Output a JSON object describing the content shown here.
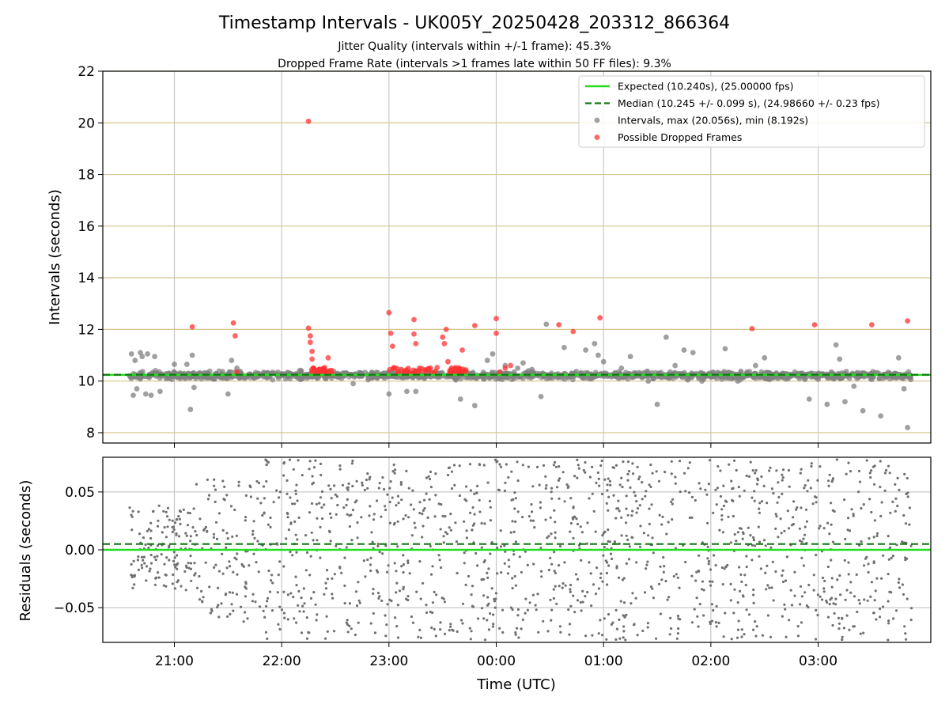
{
  "chart_data": [
    {
      "type": "scatter",
      "title": "Timestamp Intervals - UK005Y_20250428_203312_866364",
      "subtitle_lines": [
        "Jitter Quality (intervals within +/-1 frame): 45.3%",
        "Dropped Frame Rate (intervals >1 frames late within 50 FF files): 9.3%"
      ],
      "xlabel": "",
      "ylabel": "Intervals (seconds)",
      "ylim": [
        7.6,
        22
      ],
      "yticks": [
        8,
        10,
        12,
        14,
        16,
        18,
        20,
        22
      ],
      "xlim_hours": [
        20.333,
        28.05
      ],
      "grid": true,
      "legend_position": "top-right",
      "legend": [
        {
          "label": "Expected (10.240s), (25.00000 fps)",
          "kind": "line",
          "color": "#22dd22"
        },
        {
          "label": "Median (10.245 +/- 0.099 s), (24.98660 +/- 0.23 fps)",
          "kind": "dashed",
          "color": "#117711"
        },
        {
          "label": "Intervals, max (20.056s), min (8.192s)",
          "kind": "point",
          "color": "#808080"
        },
        {
          "label": "Possible Dropped Frames",
          "kind": "point",
          "color": "#ff3333"
        }
      ],
      "reference_lines": {
        "expected": 10.24,
        "median": 10.245
      },
      "series": [
        {
          "name": "Intervals, max (20.056s), min (8.192s)",
          "color": "#808080",
          "points": [
            [
              "20:35",
              10.2
            ],
            [
              "20:36",
              11.05
            ],
            [
              "20:37",
              9.45
            ],
            [
              "20:38",
              10.8
            ],
            [
              "20:39",
              9.7
            ],
            [
              "20:41",
              11.1
            ],
            [
              "20:42",
              10.95
            ],
            [
              "20:44",
              9.5
            ],
            [
              "20:45",
              11.05
            ],
            [
              "20:47",
              9.45
            ],
            [
              "20:49",
              10.95
            ],
            [
              "20:52",
              9.6
            ],
            [
              "20:53",
              10.2
            ],
            [
              "20:55",
              10.25
            ],
            [
              "21:00",
              10.65
            ],
            [
              "21:07",
              10.65
            ],
            [
              "21:09",
              8.9
            ],
            [
              "21:10",
              11.0
            ],
            [
              "21:11",
              9.75
            ],
            [
              "21:30",
              9.5
            ],
            [
              "21:32",
              10.8
            ],
            [
              "21:35",
              10.5
            ],
            [
              "22:10",
              10.4
            ],
            [
              "22:20",
              10.1
            ],
            [
              "22:35",
              10.3
            ],
            [
              "22:40",
              9.9
            ],
            [
              "22:50",
              10.2
            ],
            [
              "23:00",
              9.5
            ],
            [
              "23:05",
              10.15
            ],
            [
              "23:10",
              9.6
            ],
            [
              "23:15",
              9.6
            ],
            [
              "23:25",
              10.2
            ],
            [
              "23:40",
              9.3
            ],
            [
              "23:45",
              10.3
            ],
            [
              "23:48",
              9.05
            ],
            [
              "23:55",
              10.8
            ],
            [
              "23:58",
              11.05
            ],
            [
              "00:05",
              10.6
            ],
            [
              "00:10",
              10.35
            ],
            [
              "00:12",
              10.5
            ],
            [
              "00:15",
              10.7
            ],
            [
              "00:18",
              10.4
            ],
            [
              "00:20",
              10.45
            ],
            [
              "00:25",
              9.4
            ],
            [
              "00:28",
              12.2
            ],
            [
              "00:38",
              11.3
            ],
            [
              "00:50",
              11.2
            ],
            [
              "00:55",
              11.45
            ],
            [
              "00:57",
              11.0
            ],
            [
              "01:00",
              10.75
            ],
            [
              "01:10",
              10.5
            ],
            [
              "01:15",
              10.95
            ],
            [
              "01:18",
              10.2
            ],
            [
              "01:25",
              10.0
            ],
            [
              "01:30",
              9.1
            ],
            [
              "01:35",
              11.7
            ],
            [
              "01:40",
              10.6
            ],
            [
              "01:45",
              11.2
            ],
            [
              "01:50",
              11.1
            ],
            [
              "01:55",
              10.0
            ],
            [
              "01:58",
              10.2
            ],
            [
              "02:00",
              10.15
            ],
            [
              "02:05",
              10.3
            ],
            [
              "02:08",
              11.25
            ],
            [
              "02:12",
              10.3
            ],
            [
              "02:15",
              10.0
            ],
            [
              "02:20",
              10.3
            ],
            [
              "02:25",
              10.6
            ],
            [
              "02:30",
              10.9
            ],
            [
              "02:35",
              10.2
            ],
            [
              "02:40",
              10.3
            ],
            [
              "02:45",
              10.2
            ],
            [
              "02:55",
              9.3
            ],
            [
              "03:00",
              10.2
            ],
            [
              "03:05",
              9.1
            ],
            [
              "03:10",
              11.4
            ],
            [
              "03:12",
              10.85
            ],
            [
              "03:15",
              9.2
            ],
            [
              "03:20",
              9.8
            ],
            [
              "03:25",
              8.85
            ],
            [
              "03:30",
              10.2
            ],
            [
              "03:35",
              8.65
            ],
            [
              "03:40",
              10.3
            ],
            [
              "03:45",
              10.9
            ],
            [
              "03:48",
              9.7
            ],
            [
              "03:50",
              8.2
            ]
          ]
        },
        {
          "name": "Possible Dropped Frames",
          "color": "#ff3333",
          "points": [
            [
              "21:10",
              12.1
            ],
            [
              "21:33",
              12.25
            ],
            [
              "21:34",
              11.75
            ],
            [
              "21:35",
              10.35
            ],
            [
              "22:15",
              20.06
            ],
            [
              "22:15",
              12.05
            ],
            [
              "22:16",
              11.75
            ],
            [
              "22:16",
              11.5
            ],
            [
              "22:17",
              11.15
            ],
            [
              "22:17",
              10.85
            ],
            [
              "22:18",
              10.5
            ],
            [
              "22:19",
              10.4
            ],
            [
              "22:20",
              10.3
            ],
            [
              "22:21",
              10.45
            ],
            [
              "22:23",
              10.35
            ],
            [
              "22:25",
              10.35
            ],
            [
              "22:26",
              10.9
            ],
            [
              "22:27",
              10.4
            ],
            [
              "23:00",
              12.65
            ],
            [
              "23:01",
              11.85
            ],
            [
              "23:02",
              11.35
            ],
            [
              "23:03",
              10.5
            ],
            [
              "23:05",
              10.35
            ],
            [
              "23:07",
              10.45
            ],
            [
              "23:10",
              10.4
            ],
            [
              "23:13",
              10.3
            ],
            [
              "23:14",
              12.38
            ],
            [
              "23:14",
              11.82
            ],
            [
              "23:15",
              11.45
            ],
            [
              "23:17",
              10.5
            ],
            [
              "23:20",
              10.35
            ],
            [
              "23:22",
              10.45
            ],
            [
              "23:25",
              10.3
            ],
            [
              "23:30",
              11.7
            ],
            [
              "23:31",
              11.45
            ],
            [
              "23:32",
              12.0
            ],
            [
              "23:33",
              10.75
            ],
            [
              "23:34",
              10.4
            ],
            [
              "23:36",
              10.35
            ],
            [
              "23:38",
              10.3
            ],
            [
              "23:41",
              11.2
            ],
            [
              "23:42",
              10.3
            ],
            [
              "23:48",
              12.15
            ],
            [
              "00:00",
              12.42
            ],
            [
              "00:00",
              11.85
            ],
            [
              "00:02",
              10.35
            ],
            [
              "00:05",
              10.5
            ],
            [
              "00:08",
              10.6
            ],
            [
              "00:35",
              12.18
            ],
            [
              "00:43",
              11.92
            ],
            [
              "00:58",
              12.45
            ],
            [
              "02:23",
              12.03
            ],
            [
              "02:58",
              12.18
            ],
            [
              "03:30",
              12.18
            ],
            [
              "03:50",
              12.33
            ]
          ]
        }
      ]
    },
    {
      "type": "scatter",
      "xlabel": "Time (UTC)",
      "ylabel": "Residuals (seconds)",
      "ylim": [
        -0.08,
        0.08
      ],
      "yticks": [
        0.05,
        0.0,
        -0.05
      ],
      "yticklabels": [
        "0.05",
        "0.00",
        "−0.05"
      ],
      "xticks": [
        "21:00",
        "22:00",
        "23:00",
        "00:00",
        "01:00",
        "02:00",
        "03:00"
      ],
      "grid": true,
      "reference_lines": {
        "expected": 0.0,
        "median": 0.005
      },
      "series": [
        {
          "name": "",
          "color": "#707070",
          "time_range": [
            "20:35",
            "03:52"
          ],
          "value_range": [
            -0.08,
            0.08
          ],
          "approximate_count": 1700
        }
      ]
    }
  ]
}
